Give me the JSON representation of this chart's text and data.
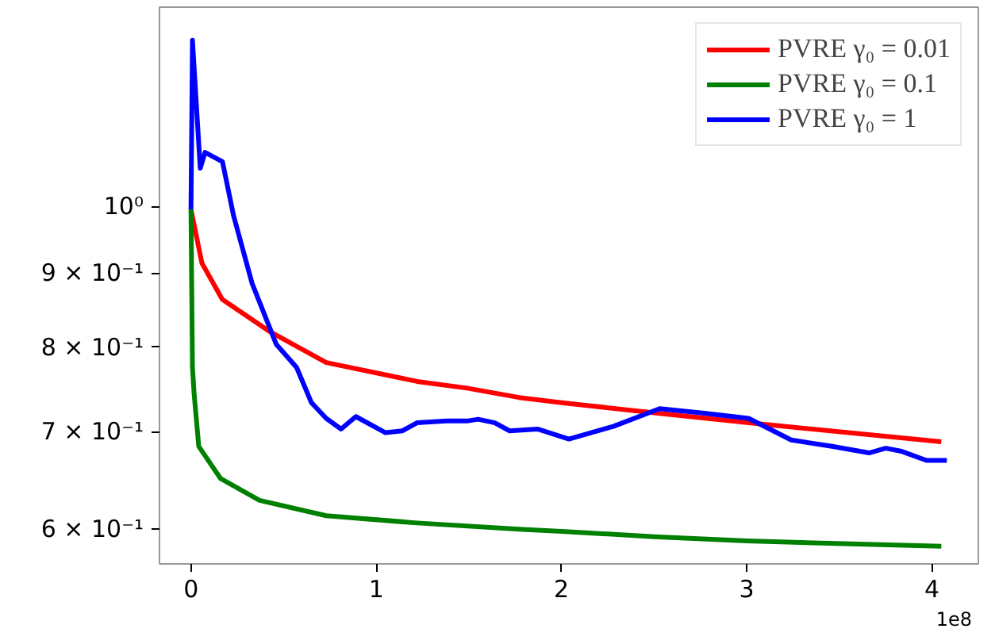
{
  "chart_data": {
    "type": "line",
    "log": "y",
    "legend": "top right",
    "line_style": "solid",
    "marker": "none",
    "xlim": [
      -0.17,
      4.25
    ],
    "ylim": [
      0.568,
      1.37
    ],
    "xticks": [
      0,
      1,
      2,
      3,
      4
    ],
    "yticks": [
      {
        "value": 0.6,
        "label": "6 × 10⁻¹"
      },
      {
        "value": 0.7,
        "label": "7 × 10⁻¹"
      },
      {
        "value": 0.8,
        "label": "8 × 10⁻¹"
      },
      {
        "value": 0.9,
        "label": "9 × 10⁻¹"
      },
      {
        "value": 1,
        "label": "10⁰"
      }
    ],
    "annotations": [
      "1e8"
    ],
    "series": [
      {
        "name": "PVRE γ₀ = 0.01",
        "color": "#ff0000",
        "x": [
          0,
          0.059,
          0.169,
          0.42,
          0.73,
          1.22,
          1.49,
          1.77,
          2.0,
          2.51,
          3.01,
          4.05
        ],
        "values": [
          0.995,
          0.914,
          0.863,
          0.821,
          0.781,
          0.758,
          0.75,
          0.739,
          0.733,
          0.721,
          0.71,
          0.689
        ]
      },
      {
        "name": "PVRE γ₀ = 0.1",
        "color": "#008000",
        "x": [
          0,
          0.008,
          0.017,
          0.042,
          0.16,
          0.37,
          0.73,
          1.22,
          1.77,
          2.0,
          2.5,
          3.0,
          4.05
        ],
        "values": [
          0.995,
          0.775,
          0.743,
          0.684,
          0.65,
          0.628,
          0.613,
          0.606,
          0.6,
          0.598,
          0.593,
          0.589,
          0.584
        ]
      },
      {
        "name": "PVRE γ₀ = 1",
        "color": "#0000ff",
        "x": [
          0,
          0.008,
          0.05,
          0.076,
          0.17,
          0.23,
          0.33,
          0.46,
          0.57,
          0.65,
          0.73,
          0.81,
          0.89,
          1.05,
          1.14,
          1.22,
          1.38,
          1.49,
          1.55,
          1.64,
          1.72,
          1.87,
          2.04,
          2.28,
          2.53,
          2.76,
          3.01,
          3.24,
          3.46,
          3.66,
          3.75,
          3.83,
          3.97,
          4.08
        ],
        "values": [
          0.995,
          1.3,
          1.062,
          1.089,
          1.073,
          0.985,
          0.885,
          0.804,
          0.775,
          0.733,
          0.715,
          0.703,
          0.717,
          0.699,
          0.701,
          0.71,
          0.712,
          0.712,
          0.714,
          0.71,
          0.701,
          0.703,
          0.692,
          0.706,
          0.726,
          0.721,
          0.715,
          0.691,
          0.684,
          0.677,
          0.682,
          0.679,
          0.669,
          0.669
        ]
      }
    ]
  }
}
